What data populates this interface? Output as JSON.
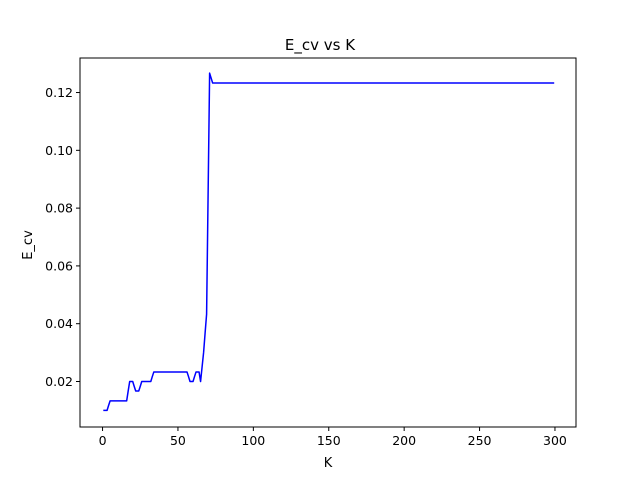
{
  "chart_data": {
    "type": "line",
    "title": "E_cv vs K",
    "xlabel": "K",
    "ylabel": "E_cv",
    "xlim": [
      -14.95,
      313.95
    ],
    "ylim": [
      0.00425,
      0.13195
    ],
    "xticks": [
      0,
      50,
      100,
      150,
      200,
      250,
      300
    ],
    "xtick_labels": [
      "0",
      "50",
      "100",
      "150",
      "200",
      "250",
      "300"
    ],
    "yticks": [
      0.02,
      0.04,
      0.06,
      0.08,
      0.1,
      0.12
    ],
    "ytick_labels": [
      "0.02",
      "0.04",
      "0.06",
      "0.08",
      "0.10",
      "0.12"
    ],
    "grid": false,
    "series": [
      {
        "color": "#0000ff",
        "x": [
          1,
          3,
          4,
          5,
          6,
          7,
          8,
          9,
          10,
          11,
          12,
          13,
          14,
          15,
          16,
          17,
          18,
          19,
          20,
          21,
          22,
          23,
          24,
          25,
          26,
          27,
          28,
          29,
          30,
          31,
          32,
          33,
          34,
          35,
          40,
          45,
          50,
          52,
          54,
          55,
          56,
          57,
          58,
          59,
          60,
          61,
          62,
          63,
          64,
          65,
          66,
          67,
          68,
          69,
          70,
          71,
          72,
          73,
          74,
          75,
          80,
          100,
          150,
          200,
          250,
          299
        ],
        "y": [
          0.01,
          0.01,
          0.0117,
          0.0133,
          0.0133,
          0.0133,
          0.0133,
          0.0133,
          0.0133,
          0.0133,
          0.0133,
          0.0133,
          0.0133,
          0.0133,
          0.0133,
          0.0167,
          0.02,
          0.02,
          0.02,
          0.0183,
          0.0167,
          0.0167,
          0.0167,
          0.0183,
          0.02,
          0.02,
          0.02,
          0.02,
          0.02,
          0.02,
          0.02,
          0.0217,
          0.0233,
          0.0233,
          0.0233,
          0.0233,
          0.0233,
          0.0233,
          0.0233,
          0.0233,
          0.0233,
          0.0217,
          0.02,
          0.02,
          0.02,
          0.0217,
          0.0233,
          0.0233,
          0.0233,
          0.02,
          0.025,
          0.03,
          0.0367,
          0.0433,
          0.085,
          0.1267,
          0.125,
          0.1233,
          0.1233,
          0.1233,
          0.1233,
          0.1233,
          0.1233,
          0.1233,
          0.1233,
          0.1233
        ]
      }
    ]
  }
}
